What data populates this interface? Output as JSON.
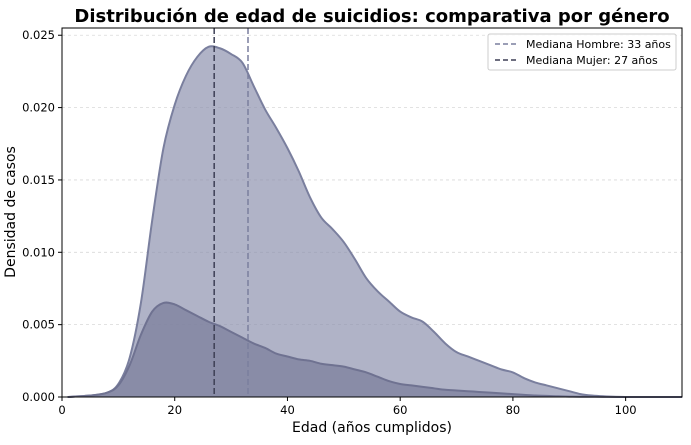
{
  "chart_data": {
    "type": "area",
    "title": "Distribución de edad de suicidios: comparativa por género",
    "xlabel": "Edad (años cumplidos)",
    "ylabel": "Densidad de casos",
    "xlim": [
      0,
      110
    ],
    "ylim": [
      0,
      0.0255
    ],
    "xticks": [
      0,
      20,
      40,
      60,
      80,
      100
    ],
    "yticks": [
      0.0,
      0.005,
      0.01,
      0.015,
      0.02,
      0.025
    ],
    "ytick_labels": [
      "0.000",
      "0.005",
      "0.010",
      "0.015",
      "0.020",
      "0.025"
    ],
    "grid": "horizontal dashed",
    "legend_position": "top-right",
    "series": [
      {
        "color": "#8a8fad",
        "line_color": "#7a7f9e",
        "x": [
          1,
          5,
          8,
          10,
          12,
          14,
          16,
          18,
          20,
          22,
          24,
          26,
          28,
          30,
          32,
          34,
          36,
          38,
          40,
          42,
          44,
          46,
          48,
          50,
          52,
          54,
          56,
          58,
          60,
          62,
          64,
          66,
          68,
          70,
          72,
          74,
          76,
          78,
          80,
          82,
          84,
          86,
          88,
          90,
          92,
          94,
          96,
          100,
          110
        ],
        "values": [
          0.0,
          0.0001,
          0.0003,
          0.0009,
          0.0027,
          0.0065,
          0.0122,
          0.0172,
          0.0202,
          0.0222,
          0.0235,
          0.0242,
          0.0241,
          0.0237,
          0.0231,
          0.0215,
          0.0199,
          0.0186,
          0.0172,
          0.0156,
          0.0138,
          0.0124,
          0.0116,
          0.0107,
          0.0095,
          0.0082,
          0.0073,
          0.0066,
          0.0059,
          0.0055,
          0.0052,
          0.0045,
          0.0037,
          0.0031,
          0.0028,
          0.0025,
          0.0022,
          0.0019,
          0.0017,
          0.0013,
          0.001,
          0.0008,
          0.0006,
          0.0004,
          0.0002,
          0.0001,
          5e-05,
          0.0,
          0.0
        ]
      },
      {
        "color": "#7c7f9c",
        "line_color": "#6f7291",
        "x": [
          1,
          5,
          8,
          10,
          12,
          14,
          16,
          18,
          20,
          22,
          24,
          26,
          28,
          30,
          32,
          34,
          36,
          38,
          40,
          42,
          44,
          46,
          48,
          50,
          52,
          54,
          56,
          58,
          60,
          62,
          64,
          66,
          68,
          70,
          72,
          74,
          76,
          78,
          80,
          82,
          84,
          86,
          88,
          90,
          92,
          96,
          100,
          110
        ],
        "values": [
          0.0,
          0.0001,
          0.0003,
          0.0008,
          0.0022,
          0.0043,
          0.0059,
          0.0065,
          0.0064,
          0.006,
          0.0056,
          0.0052,
          0.0049,
          0.0045,
          0.0041,
          0.0037,
          0.0034,
          0.003,
          0.0028,
          0.0026,
          0.0025,
          0.0023,
          0.0022,
          0.0021,
          0.0019,
          0.0017,
          0.0014,
          0.0011,
          0.0009,
          0.0008,
          0.0007,
          0.0006,
          0.0005,
          0.00045,
          0.0004,
          0.00035,
          0.0003,
          0.00025,
          0.0002,
          0.00015,
          0.0001,
          8e-05,
          5e-05,
          3e-05,
          2e-05,
          1e-05,
          0.0,
          0.0
        ]
      }
    ],
    "reference_lines": [
      {
        "label": "Mediana Hombre: 33 años",
        "x": 33,
        "color": "#7a7f9e",
        "style": "dashed"
      },
      {
        "label": "Mediana Mujer: 27 años",
        "x": 27,
        "color": "#3d3f55",
        "style": "dashed"
      }
    ]
  }
}
